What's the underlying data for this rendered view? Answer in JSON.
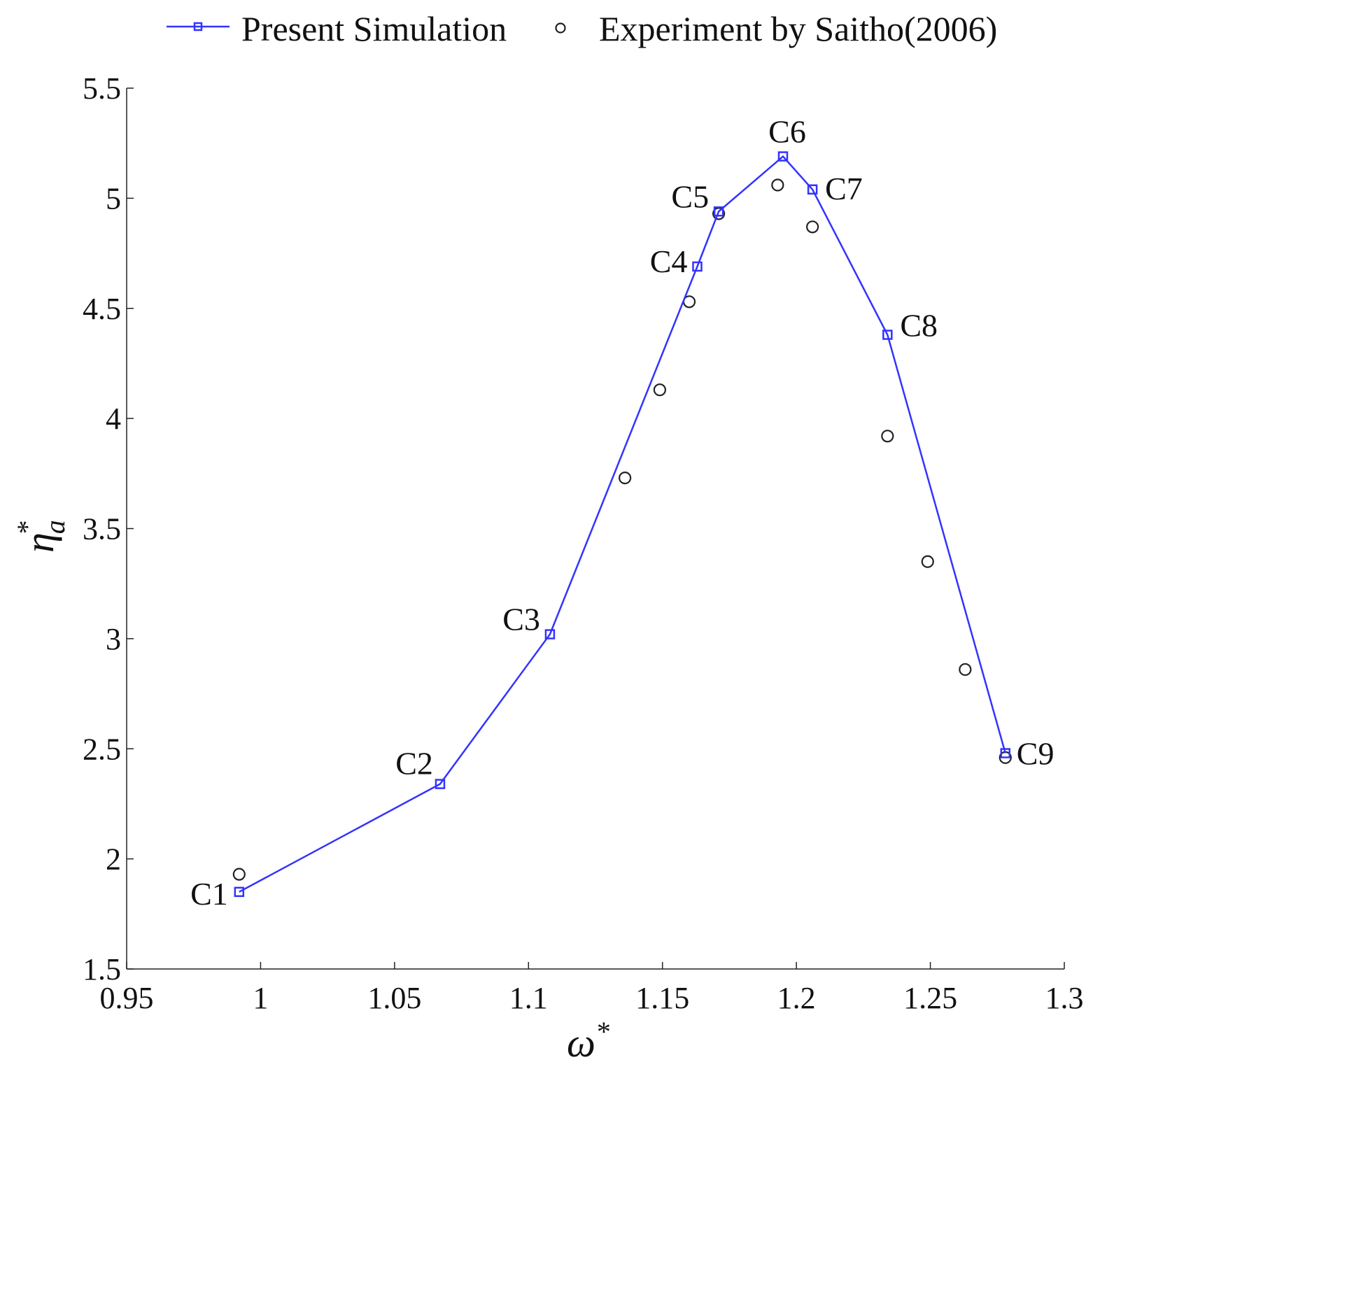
{
  "chart_data": {
    "type": "line",
    "title": "",
    "xlabel": "ω*",
    "ylabel": "η*a",
    "xlabel_parts": {
      "main": "ω",
      "sup": "*"
    },
    "ylabel_parts": {
      "main": "η",
      "sub": "a",
      "sup": "*"
    },
    "xlim": [
      0.95,
      1.3
    ],
    "ylim": [
      1.5,
      5.5
    ],
    "xticks": [
      0.95,
      1.0,
      1.05,
      1.1,
      1.15,
      1.2,
      1.25,
      1.3
    ],
    "xtick_labels": [
      "0.95",
      "1",
      "1.05",
      "1.1",
      "1.15",
      "1.2",
      "1.25",
      "1.3"
    ],
    "yticks": [
      1.5,
      2.0,
      2.5,
      3.0,
      3.5,
      4.0,
      4.5,
      5.0,
      5.5
    ],
    "ytick_labels": [
      "1.5",
      "2",
      "2.5",
      "3",
      "3.5",
      "4",
      "4.5",
      "5",
      "5.5"
    ],
    "grid": false,
    "legend_position": "top-outside",
    "series": [
      {
        "name": "Present Simulation",
        "style": "line-square",
        "color": "#3333ff",
        "x": [
          0.992,
          1.067,
          1.108,
          1.163,
          1.171,
          1.195,
          1.206,
          1.234,
          1.278
        ],
        "y": [
          1.85,
          2.34,
          3.02,
          4.69,
          4.94,
          5.19,
          5.04,
          4.38,
          2.48
        ],
        "point_labels": [
          "C1",
          "C2",
          "C3",
          "C4",
          "C5",
          "C6",
          "C7",
          "C8",
          "C9"
        ]
      },
      {
        "name": "Experiment by Saitho(2006)",
        "style": "marker-circle",
        "color": "#222222",
        "x": [
          0.992,
          1.136,
          1.149,
          1.16,
          1.171,
          1.193,
          1.206,
          1.234,
          1.249,
          1.263,
          1.278
        ],
        "y": [
          1.93,
          3.73,
          4.13,
          4.53,
          4.93,
          5.06,
          4.87,
          3.92,
          3.35,
          2.86,
          2.46
        ]
      }
    ]
  }
}
